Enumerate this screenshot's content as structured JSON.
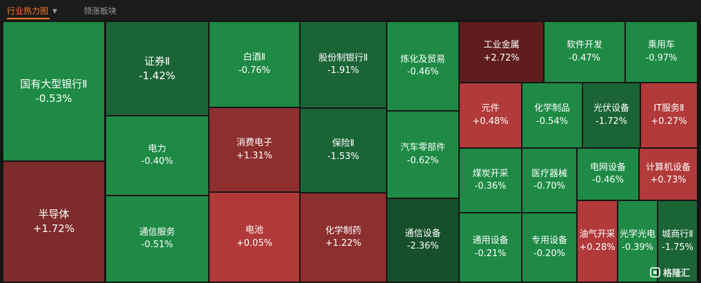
{
  "tabs": [
    {
      "label": "行业热力图",
      "active": true
    },
    {
      "label": "领涨板块",
      "active": false
    }
  ],
  "colors": {
    "accent": "#ff7a26",
    "up": "#b23a3a",
    "down": "#1e8a45",
    "strong_up": "#5f1d1d",
    "strong_down": "#174f2c"
  },
  "watermark": "格隆汇",
  "chart_data": {
    "type": "treemap",
    "unit": "%",
    "items": [
      {
        "name": "国有大型银行Ⅱ",
        "change": -0.53
      },
      {
        "name": "半导体",
        "change": 1.72
      },
      {
        "name": "证券Ⅱ",
        "change": -1.42
      },
      {
        "name": "电力",
        "change": -0.4
      },
      {
        "name": "通信服务",
        "change": -0.51
      },
      {
        "name": "白酒Ⅱ",
        "change": -0.76
      },
      {
        "name": "消费电子",
        "change": 1.31
      },
      {
        "name": "电池",
        "change": 0.05
      },
      {
        "name": "股份制银行Ⅱ",
        "change": -1.91
      },
      {
        "name": "保险Ⅱ",
        "change": -1.53
      },
      {
        "name": "化学制药",
        "change": 1.22
      },
      {
        "name": "炼化及贸易",
        "change": -0.46
      },
      {
        "name": "汽车零部件",
        "change": -0.62
      },
      {
        "name": "通信设备",
        "change": -2.36
      },
      {
        "name": "工业金属",
        "change": 2.72
      },
      {
        "name": "软件开发",
        "change": -0.47
      },
      {
        "name": "乘用车",
        "change": -0.97
      },
      {
        "name": "元件",
        "change": 0.48
      },
      {
        "name": "化学制品",
        "change": -0.54
      },
      {
        "name": "光伏设备",
        "change": -1.72
      },
      {
        "name": "IT服务Ⅱ",
        "change": 0.27
      },
      {
        "name": "煤炭开采",
        "change": -0.36
      },
      {
        "name": "医疗器械",
        "change": -0.7
      },
      {
        "name": "电网设备",
        "change": -0.46
      },
      {
        "name": "计算机设备",
        "change": 0.73
      },
      {
        "name": "通用设备",
        "change": -0.21
      },
      {
        "name": "专用设备",
        "change": -0.2
      },
      {
        "name": "油气开采",
        "change": 0.28
      },
      {
        "name": "光学光电",
        "change": -0.39
      },
      {
        "name": "城商行Ⅱ",
        "change": -1.75
      }
    ]
  }
}
